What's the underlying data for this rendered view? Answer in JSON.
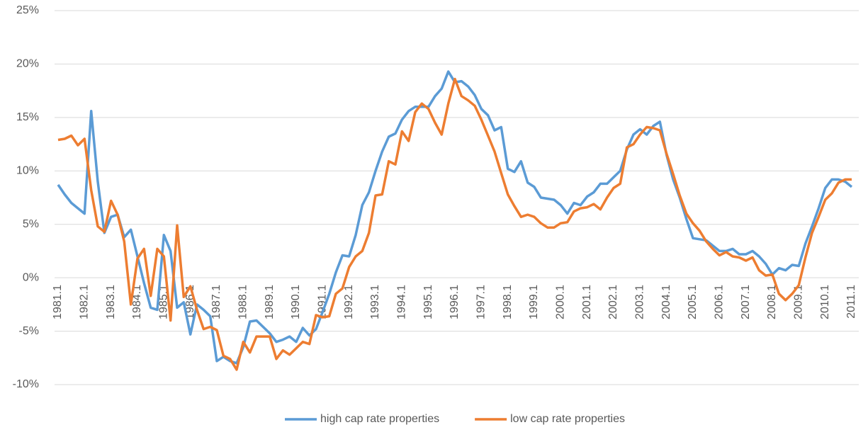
{
  "chart_data": {
    "type": "line",
    "categories": [
      "1981.1",
      null,
      null,
      null,
      "1982.1",
      null,
      null,
      null,
      "1983.1",
      null,
      null,
      null,
      "1984.1",
      null,
      null,
      null,
      "1985.1",
      null,
      null,
      null,
      "1986.1",
      null,
      null,
      null,
      "1987.1",
      null,
      null,
      null,
      "1988.1",
      null,
      null,
      null,
      "1989.1",
      null,
      null,
      null,
      "1990.1",
      null,
      null,
      null,
      "1991.1",
      null,
      null,
      null,
      "1992.1",
      null,
      null,
      null,
      "1993.1",
      null,
      null,
      null,
      "1994.1",
      null,
      null,
      null,
      "1995.1",
      null,
      null,
      null,
      "1996.1",
      null,
      null,
      null,
      "1997.1",
      null,
      null,
      null,
      "1998.1",
      null,
      null,
      null,
      "1999.1",
      null,
      null,
      null,
      "2000.1",
      null,
      null,
      null,
      "2001.1",
      null,
      null,
      null,
      "2002.1",
      null,
      null,
      null,
      "2003.1",
      null,
      null,
      null,
      "2004.1",
      null,
      null,
      null,
      "2005.1",
      null,
      null,
      null,
      "2006.1",
      null,
      null,
      null,
      "2007.1",
      null,
      null,
      null,
      "2008.1",
      null,
      null,
      null,
      "2009.1",
      null,
      null,
      null,
      "2010.1",
      null,
      null,
      null,
      "2011.1"
    ],
    "series": [
      {
        "name": "high cap rate properties",
        "color": "#5b9bd5",
        "values": [
          8.7,
          7.8,
          7.0,
          6.5,
          6.0,
          15.6,
          9.0,
          4.2,
          5.7,
          5.9,
          3.8,
          4.5,
          2.0,
          -0.5,
          -2.8,
          -3.0,
          4.0,
          2.5,
          -2.8,
          -2.3,
          -5.3,
          -2.5,
          -3.0,
          -3.6,
          -7.8,
          -7.4,
          -7.8,
          -8.0,
          -6.5,
          -4.1,
          -4.0,
          -4.6,
          -5.2,
          -6.0,
          -5.8,
          -5.5,
          -6.0,
          -4.7,
          -5.4,
          -4.8,
          -3.2,
          -1.5,
          0.5,
          2.1,
          2.0,
          4.0,
          6.8,
          8.0,
          10.0,
          11.8,
          13.2,
          13.5,
          14.8,
          15.6,
          16.0,
          16.0,
          16.0,
          17.0,
          17.7,
          19.3,
          18.3,
          18.4,
          17.9,
          17.1,
          15.8,
          15.2,
          13.8,
          14.1,
          10.2,
          9.9,
          10.9,
          8.9,
          8.5,
          7.5,
          7.4,
          7.3,
          6.8,
          6.0,
          7.0,
          6.8,
          7.6,
          8.0,
          8.8,
          8.8,
          9.4,
          10.0,
          12.0,
          13.4,
          13.9,
          13.4,
          14.2,
          14.6,
          11.5,
          9.2,
          7.5,
          5.5,
          3.7,
          3.6,
          3.5,
          3.0,
          2.5,
          2.5,
          2.7,
          2.2,
          2.2,
          2.5,
          2.0,
          1.3,
          0.3,
          0.9,
          0.7,
          1.2,
          1.1,
          3.2,
          4.8,
          6.5,
          8.4,
          9.2,
          9.2,
          9.0,
          8.5
        ]
      },
      {
        "name": "low cap rate properties",
        "color": "#ed7d31",
        "values": [
          12.9,
          13.0,
          13.3,
          12.4,
          13.0,
          8.2,
          4.8,
          4.3,
          7.2,
          5.9,
          3.4,
          -2.5,
          1.8,
          2.7,
          -1.7,
          2.7,
          2.0,
          -4.0,
          4.9,
          -1.8,
          -0.8,
          -3.0,
          -4.8,
          -4.6,
          -4.9,
          -7.3,
          -7.6,
          -8.6,
          -6.0,
          -7.0,
          -5.5,
          -5.5,
          -5.5,
          -7.6,
          -6.8,
          -7.2,
          -6.6,
          -6.0,
          -6.2,
          -3.5,
          -3.7,
          -3.6,
          -1.5,
          -1.0,
          1.0,
          2.0,
          2.5,
          4.2,
          7.7,
          7.8,
          10.9,
          10.6,
          13.7,
          12.8,
          15.5,
          16.3,
          15.8,
          14.5,
          13.4,
          16.3,
          18.6,
          17.0,
          16.6,
          16.1,
          14.8,
          13.3,
          11.8,
          9.8,
          7.8,
          6.7,
          5.7,
          5.9,
          5.7,
          5.1,
          4.7,
          4.7,
          5.1,
          5.2,
          6.2,
          6.5,
          6.6,
          6.9,
          6.4,
          7.5,
          8.4,
          8.8,
          12.2,
          12.5,
          13.4,
          14.1,
          14.0,
          13.8,
          11.6,
          9.7,
          7.7,
          6.0,
          5.1,
          4.4,
          3.4,
          2.7,
          2.1,
          2.4,
          2.0,
          1.9,
          1.6,
          1.9,
          0.7,
          0.2,
          0.3,
          -1.5,
          -2.1,
          -1.5,
          -0.7,
          1.9,
          4.2,
          5.7,
          7.3,
          7.9,
          8.9,
          9.2,
          9.2
        ]
      }
    ],
    "ylim": [
      -10,
      25
    ],
    "yticks": [
      {
        "value": -10,
        "label": "-10%"
      },
      {
        "value": -5,
        "label": "-5%"
      },
      {
        "value": 0,
        "label": "0%"
      },
      {
        "value": 5,
        "label": "5%"
      },
      {
        "value": 10,
        "label": "10%"
      },
      {
        "value": 15,
        "label": "15%"
      },
      {
        "value": 20,
        "label": "20%"
      },
      {
        "value": 25,
        "label": "25%"
      }
    ],
    "grid": true,
    "legend": "bottom"
  }
}
